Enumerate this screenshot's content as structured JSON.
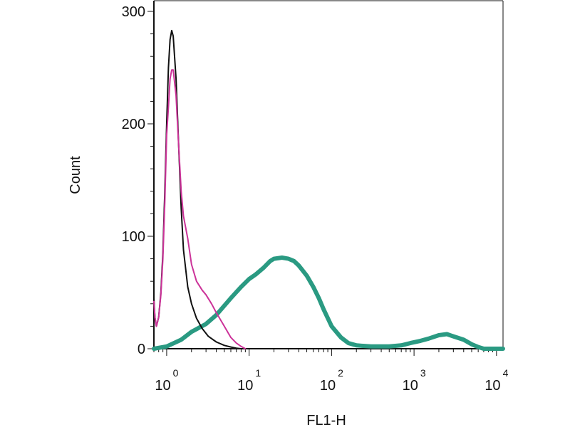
{
  "chart_data": {
    "type": "line",
    "title": "",
    "xlabel": "FL1-H",
    "ylabel": "Count",
    "x_scale": "log",
    "xlim": [
      0.7,
      12000
    ],
    "ylim": [
      0,
      300
    ],
    "grid": false,
    "legend": "none",
    "x_ticks": [
      {
        "base": "10",
        "exp": "0",
        "value": 1
      },
      {
        "base": "10",
        "exp": "1",
        "value": 10
      },
      {
        "base": "10",
        "exp": "2",
        "value": 100
      },
      {
        "base": "10",
        "exp": "3",
        "value": 1000
      },
      {
        "base": "10",
        "exp": "4",
        "value": 10000
      }
    ],
    "y_ticks": [
      {
        "label": "0",
        "value": 0
      },
      {
        "label": "100",
        "value": 100
      },
      {
        "label": "200",
        "value": 200
      },
      {
        "label": "300",
        "value": 300
      }
    ],
    "series": [
      {
        "color": "#111111",
        "width": 2,
        "points": [
          [
            0.7,
            45
          ],
          [
            0.72,
            28
          ],
          [
            0.75,
            20
          ],
          [
            0.8,
            28
          ],
          [
            0.85,
            50
          ],
          [
            0.9,
            85
          ],
          [
            0.95,
            140
          ],
          [
            1.0,
            200
          ],
          [
            1.05,
            250
          ],
          [
            1.1,
            275
          ],
          [
            1.15,
            283
          ],
          [
            1.2,
            278
          ],
          [
            1.3,
            240
          ],
          [
            1.4,
            180
          ],
          [
            1.5,
            125
          ],
          [
            1.6,
            88
          ],
          [
            1.8,
            55
          ],
          [
            2.0,
            40
          ],
          [
            2.3,
            27
          ],
          [
            2.7,
            18
          ],
          [
            3.2,
            11
          ],
          [
            4.0,
            6
          ],
          [
            5.0,
            3
          ],
          [
            6.0,
            1.5
          ],
          [
            7.0,
            0.5
          ],
          [
            8.0,
            0
          ]
        ]
      },
      {
        "color": "#cc3399",
        "width": 2,
        "points": [
          [
            0.7,
            42
          ],
          [
            0.72,
            28
          ],
          [
            0.75,
            20
          ],
          [
            0.8,
            28
          ],
          [
            0.85,
            48
          ],
          [
            0.9,
            80
          ],
          [
            0.95,
            130
          ],
          [
            1.0,
            190
          ],
          [
            1.05,
            215
          ],
          [
            1.1,
            240
          ],
          [
            1.15,
            248
          ],
          [
            1.2,
            248
          ],
          [
            1.3,
            225
          ],
          [
            1.4,
            180
          ],
          [
            1.5,
            140
          ],
          [
            1.6,
            118
          ],
          [
            1.8,
            98
          ],
          [
            2.0,
            75
          ],
          [
            2.3,
            60
          ],
          [
            2.7,
            52
          ],
          [
            3.0,
            48
          ],
          [
            3.5,
            40
          ],
          [
            4.0,
            32
          ],
          [
            5.0,
            20
          ],
          [
            6.0,
            10
          ],
          [
            7.0,
            5
          ],
          [
            8.0,
            2
          ],
          [
            9.0,
            0
          ]
        ]
      },
      {
        "color": "#2a9a82",
        "width": 6,
        "points": [
          [
            0.7,
            0
          ],
          [
            1.0,
            2
          ],
          [
            1.5,
            8
          ],
          [
            2.0,
            15
          ],
          [
            3.0,
            22
          ],
          [
            4.0,
            30
          ],
          [
            6.0,
            45
          ],
          [
            8.0,
            55
          ],
          [
            10,
            62
          ],
          [
            12,
            66
          ],
          [
            15,
            72
          ],
          [
            18,
            78
          ],
          [
            20,
            80
          ],
          [
            25,
            81
          ],
          [
            30,
            80
          ],
          [
            35,
            78
          ],
          [
            40,
            74
          ],
          [
            50,
            65
          ],
          [
            60,
            55
          ],
          [
            70,
            45
          ],
          [
            80,
            35
          ],
          [
            100,
            20
          ],
          [
            130,
            10
          ],
          [
            160,
            5
          ],
          [
            200,
            3
          ],
          [
            300,
            2
          ],
          [
            500,
            2
          ],
          [
            700,
            3
          ],
          [
            900,
            5
          ],
          [
            1200,
            7
          ],
          [
            1500,
            9
          ],
          [
            2000,
            12
          ],
          [
            2500,
            13
          ],
          [
            3000,
            11
          ],
          [
            4000,
            8
          ],
          [
            5000,
            4
          ],
          [
            6000,
            1.5
          ],
          [
            7000,
            0
          ],
          [
            12000,
            0
          ]
        ]
      }
    ]
  }
}
